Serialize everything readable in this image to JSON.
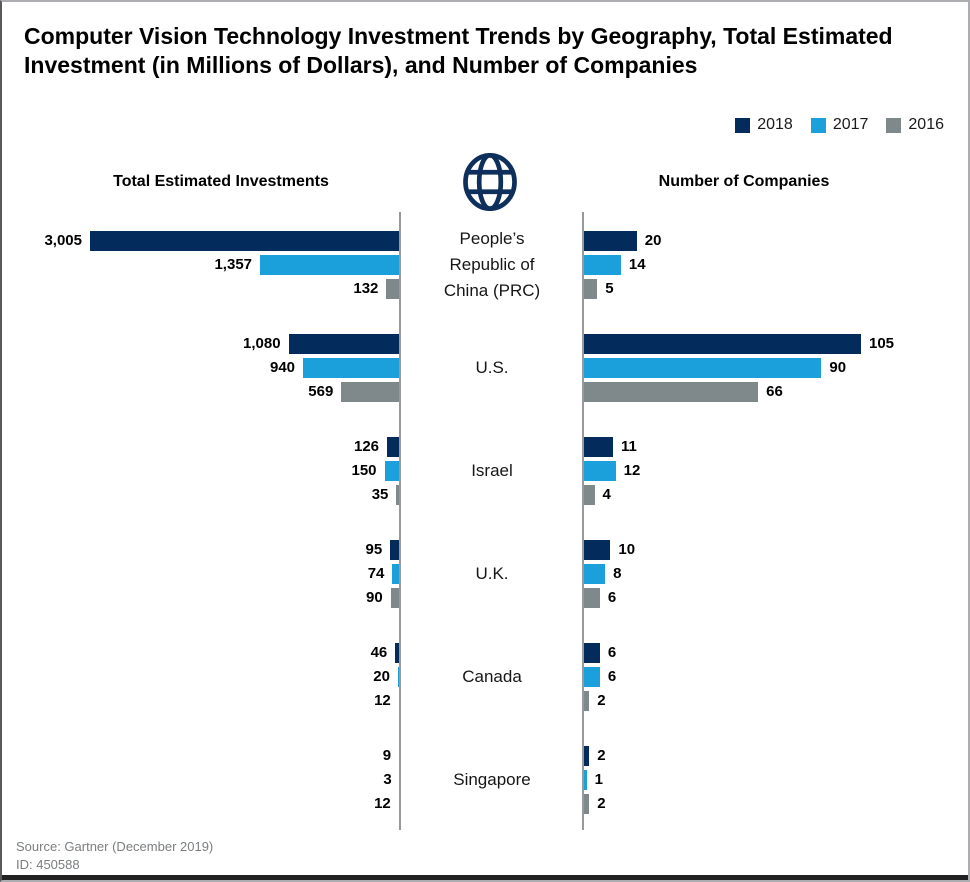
{
  "title": "Computer Vision Technology Investment Trends by Geography, Total Estimated Investment (in Millions of Dollars), and Number of Companies",
  "legend": [
    {
      "label": "2018",
      "color": "#032B5B"
    },
    {
      "label": "2017",
      "color": "#1BA0DC"
    },
    {
      "label": "2016",
      "color": "#7F898C"
    }
  ],
  "left_header": "Total Estimated Investments",
  "right_header": "Number of Companies",
  "globe_icon": "globe-grid-icon",
  "globe_color": "#0E2F5C",
  "axis_color": "#97999C",
  "source": "Source: Gartner (December 2019)",
  "id_line": "ID: 450588",
  "chart_data": {
    "type": "bar",
    "orientation": "horizontal-diverging",
    "series_years": [
      "2018",
      "2017",
      "2016"
    ],
    "left_panel": {
      "title": "Total Estimated Investments",
      "unit": "Millions of Dollars",
      "axis_max": 3005
    },
    "right_panel": {
      "title": "Number of Companies",
      "axis_max": 105
    },
    "legend_position": "top-right",
    "grid": false,
    "countries": [
      {
        "name": "People’s Republic of China (PRC)",
        "name_lines": [
          "People’s",
          "Republic of",
          "China (PRC)"
        ],
        "investments": [
          3005,
          1357,
          132
        ],
        "investment_labels": [
          "3,005",
          "1,357",
          "132"
        ],
        "companies": [
          20,
          14,
          5
        ],
        "company_labels": [
          "20",
          "14",
          "5"
        ]
      },
      {
        "name": "U.S.",
        "name_lines": [
          "U.S."
        ],
        "investments": [
          1080,
          940,
          569
        ],
        "investment_labels": [
          "1,080",
          "940",
          "569"
        ],
        "companies": [
          105,
          90,
          66
        ],
        "company_labels": [
          "105",
          "90",
          "66"
        ]
      },
      {
        "name": "Israel",
        "name_lines": [
          "Israel"
        ],
        "investments": [
          126,
          150,
          35
        ],
        "investment_labels": [
          "126",
          "150",
          "35"
        ],
        "companies": [
          11,
          12,
          4
        ],
        "company_labels": [
          "11",
          "12",
          "4"
        ]
      },
      {
        "name": "U.K.",
        "name_lines": [
          "U.K."
        ],
        "investments": [
          95,
          74,
          90
        ],
        "investment_labels": [
          "95",
          "74",
          "90"
        ],
        "companies": [
          10,
          8,
          6
        ],
        "company_labels": [
          "10",
          "8",
          "6"
        ]
      },
      {
        "name": "Canada",
        "name_lines": [
          "Canada"
        ],
        "investments": [
          46,
          20,
          12
        ],
        "investment_labels": [
          "46",
          "20",
          "12"
        ],
        "companies": [
          6,
          6,
          2
        ],
        "company_labels": [
          "6",
          "6",
          "2"
        ]
      },
      {
        "name": "Singapore",
        "name_lines": [
          "Singapore"
        ],
        "investments": [
          9,
          3,
          12
        ],
        "investment_labels": [
          "9",
          "3",
          "12"
        ],
        "companies": [
          2,
          1,
          2
        ],
        "company_labels": [
          "2",
          "1",
          "2"
        ]
      }
    ]
  }
}
